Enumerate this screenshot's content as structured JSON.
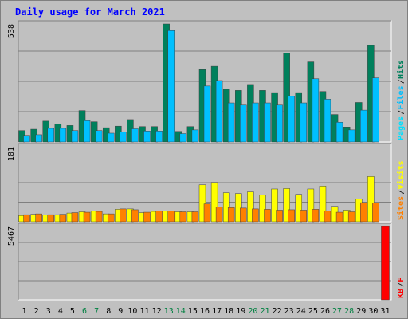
{
  "chart_data": {
    "type": "bar",
    "title": "Daily usage for March 2021",
    "categories": [
      "1",
      "2",
      "3",
      "4",
      "5",
      "6",
      "7",
      "8",
      "9",
      "10",
      "11",
      "12",
      "13",
      "14",
      "15",
      "16",
      "17",
      "18",
      "19",
      "20",
      "21",
      "22",
      "23",
      "24",
      "25",
      "26",
      "27",
      "28",
      "29",
      "30",
      "31"
    ],
    "weekend_days": [
      "6",
      "7",
      "13",
      "14",
      "20",
      "21",
      "27",
      "28"
    ],
    "panels": [
      {
        "id": "hits",
        "max_label": "538",
        "ymax": 538,
        "legend": [
          "Pages",
          "Files",
          "Hits"
        ],
        "series": [
          {
            "name": "Hits",
            "color": "#00805c",
            "values": [
              52,
              58,
              95,
              82,
              75,
              143,
              92,
              65,
              72,
              102,
              70,
              70,
              538,
              48,
              70,
              330,
              345,
              240,
              235,
              262,
              235,
              225,
              405,
              225,
              365,
              230,
              125,
              68,
              180,
              440,
              0
            ]
          },
          {
            "name": "Files",
            "color": "#00c0ff",
            "values": [
              30,
              33,
              62,
              62,
              52,
              97,
              52,
              40,
              45,
              60,
              50,
              50,
              508,
              38,
              55,
              255,
              280,
              178,
              168,
              178,
              178,
              168,
              208,
              178,
              288,
              195,
              90,
              55,
              145,
              292,
              0
            ]
          },
          {
            "name": "Pages",
            "color": "#00e0ff",
            "values": [
              0,
              0,
              0,
              0,
              0,
              0,
              0,
              0,
              0,
              0,
              0,
              0,
              0,
              0,
              0,
              0,
              0,
              0,
              0,
              0,
              0,
              0,
              0,
              0,
              0,
              0,
              0,
              0,
              0,
              0,
              0
            ]
          }
        ]
      },
      {
        "id": "visits",
        "max_label": "181",
        "ymax": 181,
        "legend": [
          "Sites",
          "Visits"
        ],
        "series": [
          {
            "name": "Visits",
            "color": "#ffff00",
            "values": [
              15,
              18,
              16,
              17,
              21,
              24,
              26,
              19,
              30,
              31,
              22,
              25,
              26,
              24,
              24,
              89,
              95,
              70,
              68,
              72,
              65,
              79,
              80,
              66,
              79,
              86,
              37,
              28,
              55,
              109,
              0
            ]
          },
          {
            "name": "Sites",
            "color": "#ff8000",
            "values": [
              17,
              19,
              17,
              18,
              22,
              23,
              25,
              19,
              31,
              29,
              23,
              26,
              26,
              24,
              24,
              43,
              36,
              34,
              33,
              31,
              30,
              28,
              29,
              28,
              30,
              26,
              23,
              24,
              46,
              45,
              0
            ]
          }
        ]
      },
      {
        "id": "kbytes",
        "max_label": "5467",
        "ymax": 5467,
        "legend": [
          "KB",
          "F"
        ],
        "series": [
          {
            "name": "KB F",
            "color": "#ff0000",
            "values": [
              0,
              0,
              0,
              0,
              0,
              0,
              0,
              0,
              0,
              0,
              0,
              0,
              0,
              0,
              0,
              0,
              0,
              0,
              0,
              0,
              0,
              0,
              0,
              0,
              0,
              0,
              0,
              0,
              0,
              0,
              5467
            ]
          }
        ]
      }
    ]
  },
  "colors": {
    "background": "#c0c0c0",
    "title": "#0000ff",
    "weekday_label": "#000000",
    "weekend_label": "#008040",
    "gridline": "#808080"
  }
}
